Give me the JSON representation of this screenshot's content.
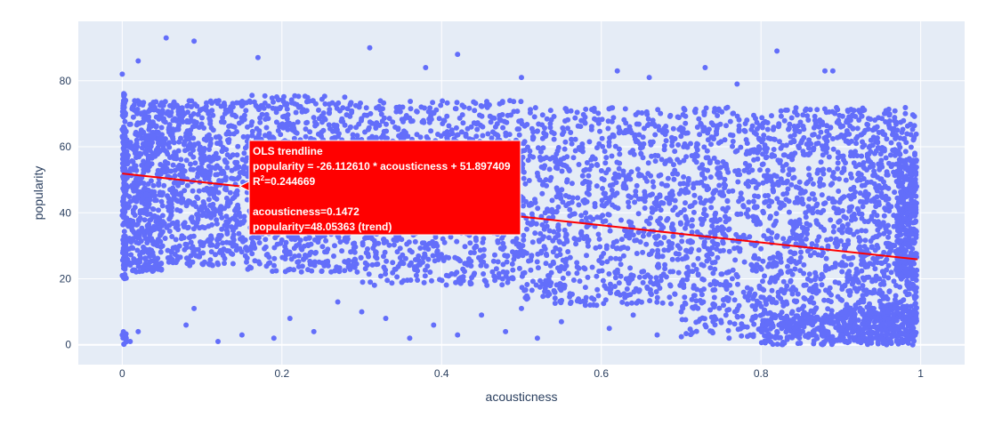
{
  "chart_data": {
    "type": "scatter",
    "xlabel": "acousticness",
    "ylabel": "popularity",
    "xlim": [
      -0.055,
      1.055
    ],
    "ylim": [
      -6,
      98
    ],
    "x_ticks": [
      0,
      0.2,
      0.4,
      0.6,
      0.8,
      1
    ],
    "x_tick_labels": [
      "0",
      "0.2",
      "0.4",
      "0.6",
      "0.8",
      "1"
    ],
    "y_ticks": [
      0,
      20,
      40,
      60,
      80
    ],
    "y_tick_labels": [
      "0",
      "20",
      "40",
      "60",
      "80"
    ],
    "grid": true,
    "series": [
      {
        "kind": "points",
        "color": "#636efa",
        "points": [
          [
            0.055,
            93
          ],
          [
            0.09,
            92
          ],
          [
            0.31,
            90
          ],
          [
            0.42,
            88
          ],
          [
            0.82,
            89
          ],
          [
            0.88,
            83
          ],
          [
            0.89,
            83
          ],
          [
            0.73,
            84
          ],
          [
            0.0,
            82
          ],
          [
            0.02,
            86
          ],
          [
            0.17,
            87
          ],
          [
            0.38,
            84
          ],
          [
            0.5,
            81
          ],
          [
            0.62,
            83
          ],
          [
            0.66,
            81
          ],
          [
            0.77,
            79
          ],
          [
            0.0,
            3
          ],
          [
            0.01,
            1
          ],
          [
            0.02,
            4
          ],
          [
            0.005,
            2
          ],
          [
            0.08,
            6
          ],
          [
            0.09,
            11
          ],
          [
            0.12,
            1
          ],
          [
            0.15,
            3
          ],
          [
            0.19,
            2
          ],
          [
            0.21,
            8
          ],
          [
            0.24,
            4
          ],
          [
            0.27,
            13
          ],
          [
            0.3,
            10
          ],
          [
            0.33,
            8
          ],
          [
            0.36,
            2
          ],
          [
            0.39,
            6
          ],
          [
            0.42,
            3
          ],
          [
            0.45,
            9
          ],
          [
            0.48,
            4
          ],
          [
            0.5,
            11
          ],
          [
            0.52,
            2
          ],
          [
            0.55,
            7
          ],
          [
            0.58,
            12
          ],
          [
            0.61,
            5
          ],
          [
            0.64,
            9
          ],
          [
            0.67,
            3
          ],
          [
            0.7,
            10
          ],
          [
            0.73,
            6
          ],
          [
            0.76,
            2
          ],
          [
            0.79,
            14
          ],
          [
            0.82,
            4
          ],
          [
            0.85,
            8
          ],
          [
            0.88,
            1
          ],
          [
            0.9,
            3
          ],
          [
            0.93,
            5
          ],
          [
            0.95,
            2
          ],
          [
            0.97,
            1
          ],
          [
            0.99,
            0
          ],
          [
            0.98,
            7
          ],
          [
            0.96,
            10
          ]
        ]
      },
      {
        "kind": "density",
        "color": "#636efa",
        "bands": [
          {
            "x": [
              0.0,
              0.005
            ],
            "y": [
              20,
              78
            ],
            "density": 1.0
          },
          {
            "x": [
              0.0,
              0.005
            ],
            "y": [
              0,
              4
            ],
            "density": 0.9
          },
          {
            "x": [
              0.005,
              0.05
            ],
            "y": [
              22,
              74
            ],
            "density": 0.85
          },
          {
            "x": [
              0.05,
              0.15
            ],
            "y": [
              24,
              74
            ],
            "density": 0.6
          },
          {
            "x": [
              0.15,
              0.3
            ],
            "y": [
              22,
              76
            ],
            "density": 0.45
          },
          {
            "x": [
              0.3,
              0.5
            ],
            "y": [
              18,
              74
            ],
            "density": 0.4
          },
          {
            "x": [
              0.5,
              0.7
            ],
            "y": [
              12,
              72
            ],
            "density": 0.35
          },
          {
            "x": [
              0.7,
              0.9
            ],
            "y": [
              2,
              72
            ],
            "density": 0.4
          },
          {
            "x": [
              0.8,
              0.95
            ],
            "y": [
              0,
              10
            ],
            "density": 0.75
          },
          {
            "x": [
              0.9,
              0.995
            ],
            "y": [
              0,
              72
            ],
            "density": 0.55
          },
          {
            "x": [
              0.95,
              0.995
            ],
            "y": [
              0,
              12
            ],
            "density": 1.0
          },
          {
            "x": [
              0.97,
              0.995
            ],
            "y": [
              20,
              56
            ],
            "density": 0.95
          }
        ]
      },
      {
        "kind": "trendline",
        "color": "#ff0000",
        "x": [
          0,
          0.996
        ],
        "y": [
          51.897409,
          25.89
        ]
      }
    ],
    "hover": {
      "x": 0.1472,
      "y": 48.05363,
      "background": "#ff0000",
      "lines": {
        "title": "OLS trendline",
        "equation": "popularity = -26.112610 * acousticness + 51.897409",
        "r2_prefix": "R",
        "r2_sup": "2",
        "r2_value": "=0.244669",
        "x_value": "acousticness=0.1472",
        "y_value": "popularity=48.05363 (trend)"
      }
    }
  }
}
